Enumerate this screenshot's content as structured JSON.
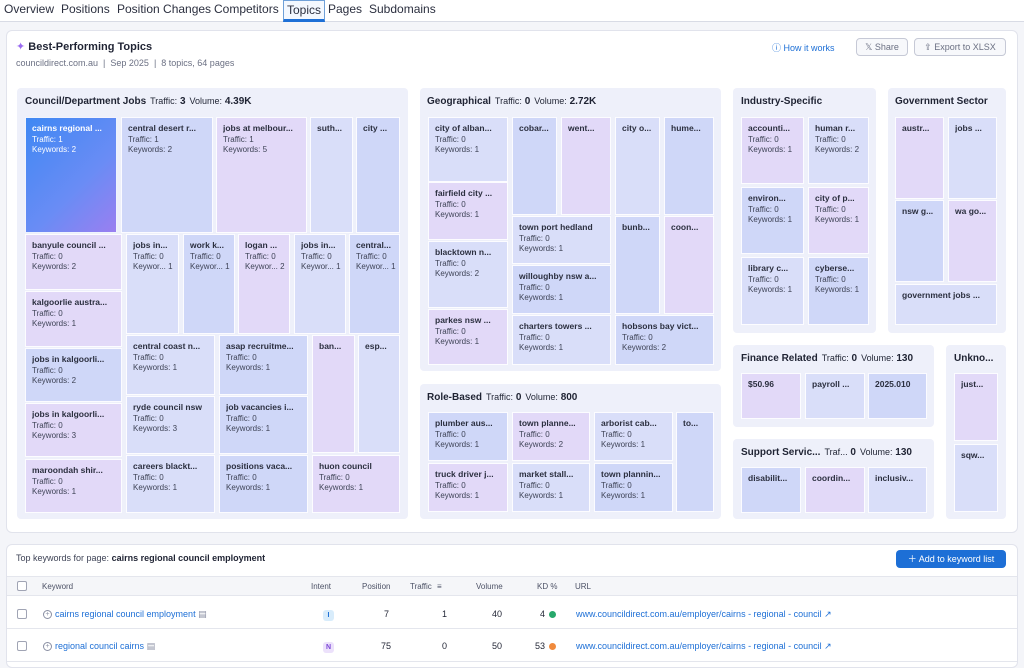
{
  "tabs": [
    "Overview",
    "Positions",
    "Position Changes",
    "Competitors",
    "Topics",
    "Pages",
    "Subdomains"
  ],
  "header": {
    "title": "Best-Performing Topics",
    "domain": "councildirect.com.au",
    "period": "Sep 2025",
    "summary": "8 topics, 64 pages",
    "how": "How it works",
    "share": "Share",
    "export": "Export to XLSX"
  },
  "sections": [
    {
      "name": "Council/Department Jobs",
      "traffic": "3",
      "volume": "4.39K"
    },
    {
      "name": "Geographical",
      "traffic": "0",
      "volume": "2.72K"
    },
    {
      "name": "Industry-Specific",
      "traffic": "",
      "volume": ""
    },
    {
      "name": "Government Sector",
      "traffic": "",
      "volume": ""
    },
    {
      "name": "Role-Based",
      "traffic": "0",
      "volume": "800"
    },
    {
      "name": "Finance Related",
      "traffic": "0",
      "volume": "130"
    },
    {
      "name": "Unkno...",
      "traffic": "",
      "volume": ""
    },
    {
      "name": "Support Servic...",
      "traffic": "0",
      "volume": "130"
    }
  ],
  "labels": {
    "traffic": "Traffic:",
    "volume": "Volume:",
    "traf_short": "Traf..."
  },
  "tiles": [
    {
      "n": "cairns regional ...",
      "t": "Traffic: 1",
      "k": "Keywords: 2"
    },
    {
      "n": "central desert r...",
      "t": "Traffic: 1",
      "k": "Keywords: 2"
    },
    {
      "n": "jobs at melbour...",
      "t": "Traffic: 1",
      "k": "Keywords: 5"
    },
    {
      "n": "suth...",
      "t": "",
      "k": ""
    },
    {
      "n": "city ...",
      "t": "",
      "k": ""
    },
    {
      "n": "banyule council ...",
      "t": "Traffic: 0",
      "k": "Keywords: 2"
    },
    {
      "n": "jobs in...",
      "t": "Traffic: 0",
      "k": "Keywor... 1"
    },
    {
      "n": "work k...",
      "t": "Traffic: 0",
      "k": "Keywor... 1"
    },
    {
      "n": "logan ...",
      "t": "Traffic: 0",
      "k": "Keywor... 2"
    },
    {
      "n": "jobs in...",
      "t": "Traffic: 0",
      "k": "Keywor... 1"
    },
    {
      "n": "central...",
      "t": "Traffic: 0",
      "k": "Keywor... 1"
    },
    {
      "n": "kalgoorlie austra...",
      "t": "Traffic: 0",
      "k": "Keywords: 1"
    },
    {
      "n": "central coast n...",
      "t": "Traffic: 0",
      "k": "Keywords: 1"
    },
    {
      "n": "asap recruitme...",
      "t": "Traffic: 0",
      "k": "Keywords: 1"
    },
    {
      "n": "ban...",
      "t": "",
      "k": ""
    },
    {
      "n": "esp...",
      "t": "",
      "k": ""
    },
    {
      "n": "jobs in kalgoorli...",
      "t": "Traffic: 0",
      "k": "Keywords: 2"
    },
    {
      "n": "jobs in kalgoorli...",
      "t": "Traffic: 0",
      "k": "Keywords: 3"
    },
    {
      "n": "ryde council nsw",
      "t": "Traffic: 0",
      "k": "Keywords: 3"
    },
    {
      "n": "job vacancies i...",
      "t": "Traffic: 0",
      "k": "Keywords: 1"
    },
    {
      "n": "maroondah shir...",
      "t": "Traffic: 0",
      "k": "Keywords: 1"
    },
    {
      "n": "careers blackt...",
      "t": "Traffic: 0",
      "k": "Keywords: 1"
    },
    {
      "n": "positions vaca...",
      "t": "Traffic: 0",
      "k": "Keywords: 1"
    },
    {
      "n": "huon council",
      "t": "Traffic: 0",
      "k": "Keywords: 1"
    },
    {
      "n": "city of alban...",
      "t": "Traffic: 0",
      "k": "Keywords: 1"
    },
    {
      "n": "cobar...",
      "t": "",
      "k": ""
    },
    {
      "n": "went...",
      "t": "",
      "k": ""
    },
    {
      "n": "city o...",
      "t": "",
      "k": ""
    },
    {
      "n": "hume...",
      "t": "",
      "k": ""
    },
    {
      "n": "fairfield city ...",
      "t": "Traffic: 0",
      "k": "Keywords: 1"
    },
    {
      "n": "town port hedland",
      "t": "Traffic: 0",
      "k": "Keywords: 1"
    },
    {
      "n": "bunb...",
      "t": "",
      "k": ""
    },
    {
      "n": "coon...",
      "t": "",
      "k": ""
    },
    {
      "n": "blacktown n...",
      "t": "Traffic: 0",
      "k": "Keywords: 2"
    },
    {
      "n": "willoughby nsw a...",
      "t": "Traffic: 0",
      "k": "Keywords: 1"
    },
    {
      "n": "parkes nsw ...",
      "t": "Traffic: 0",
      "k": "Keywords: 1"
    },
    {
      "n": "charters towers ...",
      "t": "Traffic: 0",
      "k": "Keywords: 1"
    },
    {
      "n": "hobsons bay vict...",
      "t": "Traffic: 0",
      "k": "Keywords: 2"
    },
    {
      "n": "accounti...",
      "t": "Traffic: 0",
      "k": "Keywords: 1"
    },
    {
      "n": "human r...",
      "t": "Traffic: 0",
      "k": "Keywords: 2"
    },
    {
      "n": "environ...",
      "t": "Traffic: 0",
      "k": "Keywords: 1"
    },
    {
      "n": "city of p...",
      "t": "Traffic: 0",
      "k": "Keywords: 1"
    },
    {
      "n": "library c...",
      "t": "Traffic: 0",
      "k": "Keywords: 1"
    },
    {
      "n": "cyberse...",
      "t": "Traffic: 0",
      "k": "Keywords: 1"
    },
    {
      "n": "austr...",
      "t": "",
      "k": ""
    },
    {
      "n": "jobs ...",
      "t": "",
      "k": ""
    },
    {
      "n": "nsw g...",
      "t": "",
      "k": ""
    },
    {
      "n": "wa go...",
      "t": "",
      "k": ""
    },
    {
      "n": "government jobs ...",
      "t": "",
      "k": ""
    },
    {
      "n": "plumber aus...",
      "t": "Traffic: 0",
      "k": "Keywords: 1"
    },
    {
      "n": "town planne...",
      "t": "Traffic: 0",
      "k": "Keywords: 2"
    },
    {
      "n": "arborist cab...",
      "t": "Traffic: 0",
      "k": "Keywords: 1"
    },
    {
      "n": "to...",
      "t": "",
      "k": ""
    },
    {
      "n": "truck driver j...",
      "t": "Traffic: 0",
      "k": "Keywords: 1"
    },
    {
      "n": "market stall...",
      "t": "Traffic: 0",
      "k": "Keywords: 1"
    },
    {
      "n": "town plannin...",
      "t": "Traffic: 0",
      "k": "Keywords: 1"
    },
    {
      "n": "$50.96",
      "t": "",
      "k": ""
    },
    {
      "n": "payroll ...",
      "t": "",
      "k": ""
    },
    {
      "n": "2025.010",
      "t": "",
      "k": ""
    },
    {
      "n": "just...",
      "t": "",
      "k": ""
    },
    {
      "n": "sqw...",
      "t": "",
      "k": ""
    },
    {
      "n": "disabilit...",
      "t": "",
      "k": ""
    },
    {
      "n": "coordin...",
      "t": "",
      "k": ""
    },
    {
      "n": "inclusiv...",
      "t": "",
      "k": ""
    }
  ],
  "keywords": {
    "title_prefix": "Top keywords for page:",
    "page": "cairns regional council employment",
    "add": "Add to keyword list",
    "cols": [
      "Keyword",
      "Intent",
      "Position",
      "Traffic",
      "Volume",
      "KD %",
      "URL"
    ],
    "rows": [
      {
        "keyword": "cairns regional council employment",
        "intent": "I",
        "position": "7",
        "traffic": "1",
        "volume": "40",
        "kd": "4",
        "kd_color": "#27a86b",
        "url": "www.councildirect.com.au/employer/cairns - regional - council"
      },
      {
        "keyword": "regional council cairns",
        "intent": "N",
        "position": "75",
        "traffic": "0",
        "volume": "50",
        "kd": "53",
        "kd_color": "#f08a3c",
        "url": "www.councildirect.com.au/employer/cairns - regional - council"
      }
    ]
  },
  "colors": {
    "accent": "#1d6fd6",
    "tile": "#c9d4f7",
    "tile_alt": "#dcd4f7"
  }
}
